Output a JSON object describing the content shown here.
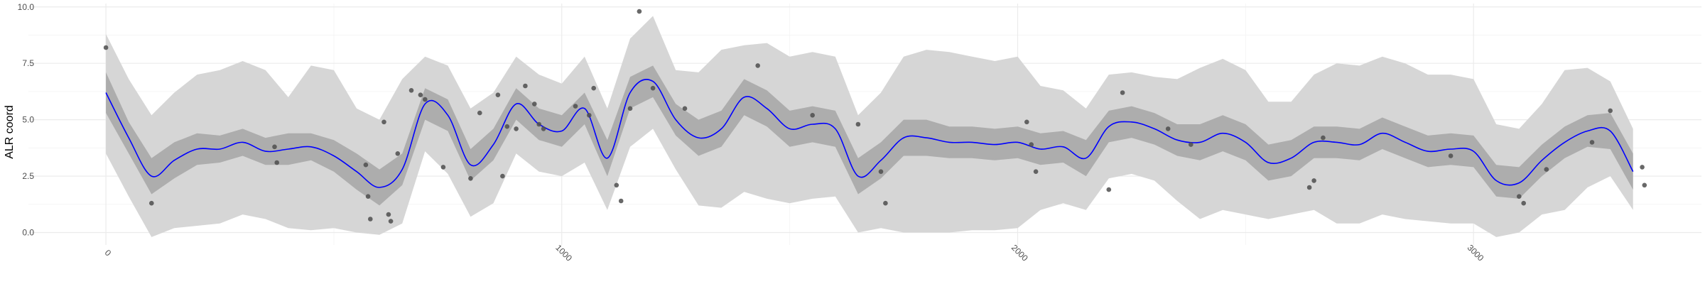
{
  "chart_data": {
    "type": "line",
    "title": "",
    "xlabel": "",
    "ylabel": "ALR coord",
    "xlim": [
      -170,
      3500
    ],
    "ylim": [
      -0.55,
      10.15
    ],
    "x_ticks": [
      0,
      1000,
      2000,
      3000
    ],
    "x_tick_labels": [
      "0",
      "1000",
      "2000",
      "3000"
    ],
    "y_ticks": [
      0,
      2.5,
      5,
      7.5,
      10
    ],
    "y_tick_labels": [
      "0.0",
      "2.5",
      "5.0",
      "7.5",
      "10.0"
    ],
    "grid": true,
    "legend": "none",
    "colors": {
      "mean_line": "#0000ff",
      "inner_band": "#adadad",
      "outer_band": "#d6d6d6",
      "points": "#4d4d4d",
      "grid_major": "#ebebeb",
      "grid_minor": "#f5f5f5"
    },
    "series": [
      {
        "kind": "mean",
        "x": [
          0,
          50,
          100,
          150,
          200,
          250,
          300,
          350,
          400,
          450,
          500,
          550,
          600,
          650,
          700,
          750,
          800,
          850,
          900,
          950,
          1000,
          1050,
          1100,
          1150,
          1200,
          1250,
          1300,
          1350,
          1400,
          1450,
          1500,
          1550,
          1600,
          1650,
          1700,
          1750,
          1800,
          1850,
          1900,
          1950,
          2000,
          2050,
          2100,
          2150,
          2200,
          2250,
          2300,
          2350,
          2400,
          2450,
          2500,
          2550,
          2600,
          2650,
          2700,
          2750,
          2800,
          2850,
          2900,
          2950,
          3000,
          3050,
          3100,
          3150,
          3200,
          3250,
          3300,
          3350
        ],
        "y": [
          6.2,
          4.2,
          2.5,
          3.2,
          3.7,
          3.7,
          4.0,
          3.6,
          3.7,
          3.8,
          3.4,
          2.7,
          2.0,
          2.8,
          5.7,
          5.2,
          3.0,
          3.9,
          5.7,
          4.8,
          4.5,
          5.5,
          3.3,
          6.2,
          6.7,
          5.0,
          4.2,
          4.6,
          6.0,
          5.5,
          4.6,
          4.8,
          4.6,
          2.5,
          3.2,
          4.2,
          4.2,
          4.0,
          4.0,
          3.9,
          4.0,
          3.7,
          3.8,
          3.3,
          4.7,
          4.9,
          4.6,
          4.1,
          4.0,
          4.4,
          4.0,
          3.1,
          3.3,
          4.0,
          4.0,
          3.9,
          4.4,
          4.0,
          3.6,
          3.7,
          3.6,
          2.3,
          2.2,
          3.2,
          4.0,
          4.5,
          4.5,
          2.7
        ]
      },
      {
        "kind": "inner_band",
        "x": [
          0,
          50,
          100,
          150,
          200,
          250,
          300,
          350,
          400,
          450,
          500,
          550,
          600,
          650,
          700,
          750,
          800,
          850,
          900,
          950,
          1000,
          1050,
          1100,
          1150,
          1200,
          1250,
          1300,
          1350,
          1400,
          1450,
          1500,
          1550,
          1600,
          1650,
          1700,
          1750,
          1800,
          1850,
          1900,
          1950,
          2000,
          2050,
          2100,
          2150,
          2200,
          2250,
          2300,
          2350,
          2400,
          2450,
          2500,
          2550,
          2600,
          2650,
          2700,
          2750,
          2800,
          2850,
          2900,
          2950,
          3000,
          3050,
          3100,
          3150,
          3200,
          3250,
          3300,
          3350
        ],
        "lower": [
          5.3,
          3.5,
          1.7,
          2.4,
          3.0,
          3.1,
          3.4,
          3.0,
          3.0,
          3.2,
          2.7,
          1.9,
          1.2,
          2.1,
          5.0,
          4.5,
          2.3,
          3.2,
          5.0,
          4.1,
          3.8,
          4.8,
          2.5,
          5.5,
          6.0,
          4.3,
          3.4,
          3.8,
          5.2,
          4.7,
          3.8,
          4.0,
          3.8,
          1.7,
          2.4,
          3.4,
          3.4,
          3.3,
          3.3,
          3.2,
          3.3,
          3.0,
          3.1,
          2.5,
          4.0,
          4.2,
          3.9,
          3.4,
          3.2,
          3.6,
          3.2,
          2.3,
          2.5,
          3.3,
          3.3,
          3.2,
          3.7,
          3.3,
          2.9,
          3.0,
          2.9,
          1.6,
          1.5,
          2.5,
          3.3,
          3.8,
          3.7,
          1.9
        ],
        "upper": [
          7.1,
          4.9,
          3.3,
          4.0,
          4.4,
          4.3,
          4.6,
          4.2,
          4.4,
          4.4,
          4.1,
          3.5,
          2.8,
          3.5,
          6.4,
          5.9,
          3.7,
          4.6,
          6.4,
          5.5,
          5.2,
          6.2,
          4.1,
          6.9,
          7.4,
          5.7,
          5.0,
          5.4,
          6.8,
          6.3,
          5.4,
          5.6,
          5.4,
          3.3,
          4.0,
          5.0,
          5.0,
          4.7,
          4.7,
          4.6,
          4.7,
          4.4,
          4.5,
          4.1,
          5.4,
          5.6,
          5.3,
          4.8,
          4.8,
          5.2,
          4.8,
          3.9,
          4.1,
          4.7,
          4.7,
          4.6,
          5.1,
          4.7,
          4.3,
          4.4,
          4.3,
          3.0,
          2.9,
          3.9,
          4.7,
          5.2,
          5.3,
          3.5
        ]
      },
      {
        "kind": "outer_band",
        "x": [
          0,
          50,
          100,
          150,
          200,
          250,
          300,
          350,
          400,
          450,
          500,
          550,
          600,
          650,
          700,
          750,
          800,
          850,
          900,
          950,
          1000,
          1050,
          1100,
          1150,
          1200,
          1250,
          1300,
          1350,
          1400,
          1450,
          1500,
          1550,
          1600,
          1650,
          1700,
          1750,
          1800,
          1850,
          1900,
          1950,
          2000,
          2050,
          2100,
          2150,
          2200,
          2250,
          2300,
          2350,
          2400,
          2450,
          2500,
          2550,
          2600,
          2650,
          2700,
          2750,
          2800,
          2850,
          2900,
          2950,
          3000,
          3050,
          3100,
          3150,
          3200,
          3250,
          3300,
          3350
        ],
        "lower": [
          3.5,
          1.6,
          -0.2,
          0.2,
          0.3,
          0.4,
          0.8,
          0.6,
          0.2,
          0.1,
          0.2,
          0.0,
          -0.1,
          0.4,
          3.6,
          2.6,
          0.7,
          1.3,
          3.5,
          2.7,
          2.5,
          3.1,
          1.0,
          3.8,
          4.6,
          2.8,
          1.2,
          1.1,
          1.8,
          1.5,
          1.3,
          1.5,
          1.6,
          0.0,
          0.2,
          0.0,
          0.0,
          0.0,
          0.1,
          0.1,
          0.2,
          1.0,
          1.3,
          1.0,
          2.4,
          2.6,
          2.3,
          1.4,
          0.6,
          1.0,
          0.8,
          0.6,
          0.8,
          1.0,
          0.4,
          0.4,
          0.8,
          0.6,
          0.5,
          0.4,
          0.4,
          -0.2,
          0.0,
          0.8,
          1.0,
          2.0,
          2.5,
          1.0
        ],
        "upper": [
          8.8,
          6.8,
          5.2,
          6.2,
          7.0,
          7.2,
          7.6,
          7.2,
          6.0,
          7.4,
          7.2,
          5.5,
          5.0,
          6.8,
          7.8,
          7.4,
          5.5,
          6.2,
          7.8,
          7.0,
          6.6,
          7.8,
          5.5,
          8.6,
          9.6,
          7.2,
          7.1,
          8.1,
          8.3,
          8.4,
          7.8,
          8.0,
          7.8,
          5.2,
          6.2,
          7.8,
          8.1,
          8.0,
          7.8,
          7.6,
          7.8,
          6.5,
          6.3,
          5.5,
          7.0,
          7.1,
          6.9,
          6.8,
          7.3,
          7.7,
          7.2,
          5.8,
          5.8,
          7.0,
          7.5,
          7.4,
          7.8,
          7.5,
          7.0,
          7.0,
          6.8,
          4.8,
          4.6,
          5.7,
          7.2,
          7.3,
          6.7,
          4.6
        ]
      },
      {
        "kind": "points",
        "x": [
          0,
          100,
          370,
          375,
          570,
          575,
          580,
          610,
          620,
          625,
          640,
          670,
          690,
          700,
          740,
          800,
          820,
          860,
          870,
          880,
          900,
          920,
          940,
          950,
          960,
          1030,
          1060,
          1070,
          1120,
          1130,
          1150,
          1170,
          1200,
          1270,
          1430,
          1550,
          1650,
          1700,
          1710,
          2020,
          2030,
          2040,
          2200,
          2230,
          2330,
          2380,
          2640,
          2650,
          2670,
          2950,
          3100,
          3110,
          3160,
          3260,
          3300,
          3370,
          3375
        ],
        "y": [
          8.2,
          1.3,
          3.8,
          3.1,
          3.0,
          1.6,
          0.6,
          4.9,
          0.8,
          0.5,
          3.5,
          6.3,
          6.1,
          5.9,
          2.9,
          2.4,
          5.3,
          6.1,
          2.5,
          4.7,
          4.6,
          6.5,
          5.7,
          4.8,
          4.6,
          5.6,
          5.2,
          6.4,
          2.1,
          1.4,
          5.5,
          9.8,
          6.4,
          5.5,
          7.4,
          5.2,
          4.8,
          2.7,
          1.3,
          4.9,
          3.9,
          2.7,
          1.9,
          6.2,
          4.6,
          3.9,
          2.0,
          2.3,
          4.2,
          3.4,
          1.6,
          1.3,
          2.8,
          4.0,
          5.4,
          2.9,
          2.1
        ]
      }
    ]
  }
}
